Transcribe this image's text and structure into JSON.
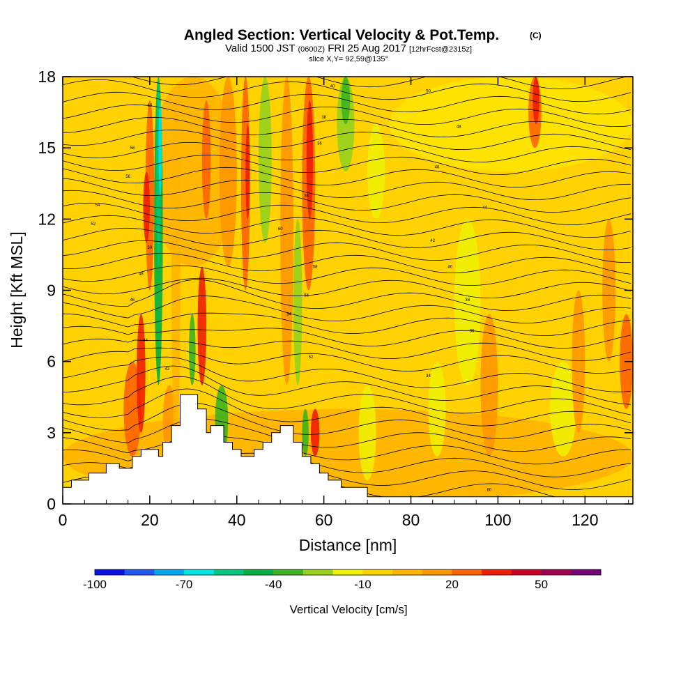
{
  "chart_data": {
    "type": "heatmap",
    "title": "Angled Section: Vertical Velocity & Pot.Temp.",
    "title_units": "(C)",
    "subtitle_prefix": "Valid 1500 JST",
    "subtitle_zulu": "(0600Z)",
    "subtitle_date": "FRI 25 Aug 2017",
    "subtitle_forecast": "[12hrFcst@2315z]",
    "slice_label": "slice X,Y= 92,59@135°",
    "xlabel": "Distance [nm]",
    "ylabel": "Height [Kft MSL]",
    "xlim": [
      0,
      131
    ],
    "ylim": [
      0,
      18
    ],
    "x_ticks": [
      0,
      20,
      40,
      60,
      80,
      100,
      120
    ],
    "y_ticks": [
      0,
      3,
      6,
      9,
      12,
      15,
      18
    ],
    "colorbar_label": "Vertical Velocity [cm/s]",
    "colorbar_ticks": [
      -100,
      -70,
      -40,
      -10,
      20,
      50
    ],
    "colorbar_range": [
      -100,
      70
    ],
    "colorbar_colors": [
      "#0a14e6",
      "#1e5af0",
      "#00a8f0",
      "#00e6e6",
      "#00c880",
      "#00b040",
      "#3cb41e",
      "#96d21e",
      "#f0f000",
      "#ffd200",
      "#ffb400",
      "#ff9600",
      "#ff6400",
      "#f01e00",
      "#c80028",
      "#a00050",
      "#780078"
    ],
    "contour_labels": [
      "60",
      "58",
      "56",
      "54",
      "52",
      "50",
      "48",
      "46",
      "44",
      "42",
      "40",
      "38",
      "36",
      "34"
    ],
    "terrain_nm_kft": [
      [
        0,
        0.7
      ],
      [
        2,
        0.7
      ],
      [
        2,
        1
      ],
      [
        6,
        1
      ],
      [
        6,
        1.3
      ],
      [
        10,
        1.3
      ],
      [
        10,
        1.7
      ],
      [
        13,
        1.7
      ],
      [
        13,
        1.5
      ],
      [
        16,
        1.5
      ],
      [
        16,
        2
      ],
      [
        18,
        2
      ],
      [
        18,
        2.3
      ],
      [
        22,
        2.3
      ],
      [
        22,
        2
      ],
      [
        23,
        2
      ],
      [
        23,
        2.6
      ],
      [
        25,
        2.6
      ],
      [
        25,
        3.3
      ],
      [
        27,
        3.3
      ],
      [
        27,
        4.6
      ],
      [
        31,
        4.6
      ],
      [
        31,
        4
      ],
      [
        33,
        4
      ],
      [
        33,
        3
      ],
      [
        34,
        3
      ],
      [
        34,
        3.3
      ],
      [
        37,
        3.3
      ],
      [
        37,
        2.6
      ],
      [
        39,
        2.6
      ],
      [
        39,
        2.3
      ],
      [
        41,
        2.3
      ],
      [
        41,
        2
      ],
      [
        44,
        2
      ],
      [
        44,
        2.3
      ],
      [
        46,
        2.3
      ],
      [
        46,
        2.6
      ],
      [
        48,
        2.6
      ],
      [
        48,
        3
      ],
      [
        50,
        3
      ],
      [
        50,
        3.3
      ],
      [
        53,
        3.3
      ],
      [
        53,
        2.6
      ],
      [
        55,
        2.6
      ],
      [
        55,
        2
      ],
      [
        57,
        2
      ],
      [
        57,
        1.7
      ],
      [
        59,
        1.7
      ],
      [
        59,
        1.3
      ],
      [
        61,
        1.3
      ],
      [
        61,
        1
      ],
      [
        64,
        1
      ],
      [
        64,
        0.7
      ],
      [
        70,
        0.7
      ],
      [
        70,
        0.3
      ],
      [
        131,
        0.3
      ]
    ]
  }
}
